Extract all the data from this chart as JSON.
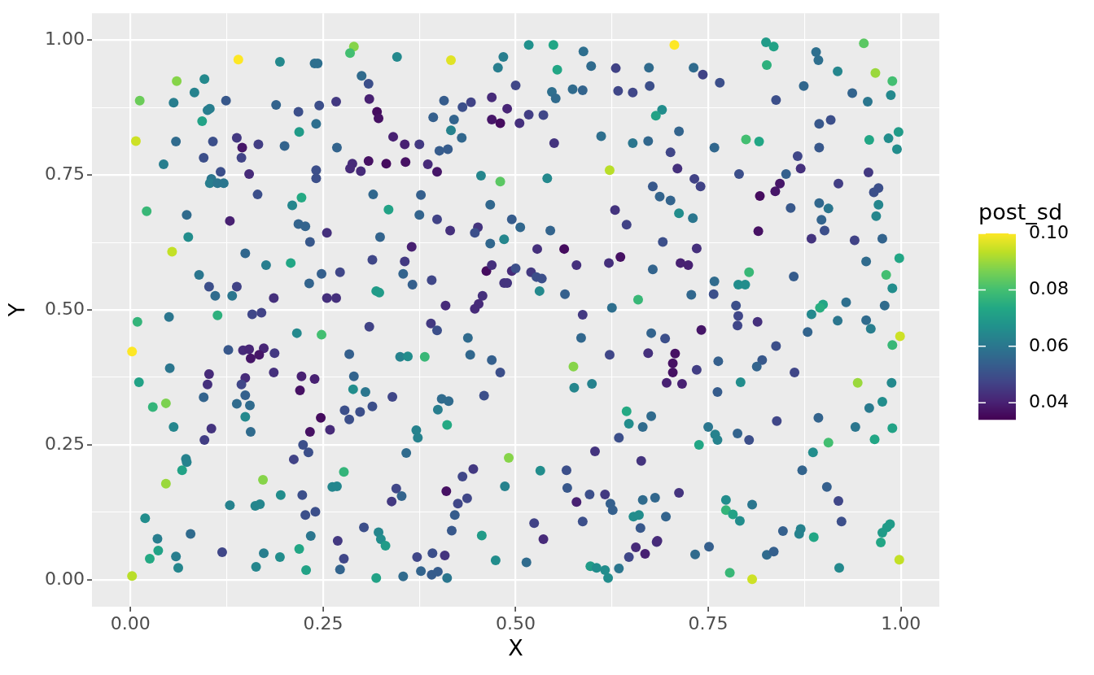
{
  "chart_data": {
    "type": "scatter",
    "xlabel": "X",
    "ylabel": "Y",
    "clabel": "post_sd",
    "marker": "circle",
    "grid": true,
    "xlim": [
      -0.05,
      1.05
    ],
    "ylim": [
      -0.05,
      1.05
    ],
    "clim": [
      0.034,
      0.1
    ],
    "xticks": [
      {
        "value": 0,
        "label": "0.00"
      },
      {
        "value": 0.125,
        "label": null
      },
      {
        "value": 0.25,
        "label": "0.25"
      },
      {
        "value": 0.375,
        "label": null
      },
      {
        "value": 0.5,
        "label": "0.50"
      },
      {
        "value": 0.625,
        "label": null
      },
      {
        "value": 0.75,
        "label": "0.75"
      },
      {
        "value": 0.875,
        "label": null
      },
      {
        "value": 1,
        "label": "1.00"
      }
    ],
    "yticks": [
      {
        "value": 0,
        "label": "0.00"
      },
      {
        "value": 0.125,
        "label": null
      },
      {
        "value": 0.25,
        "label": "0.25"
      },
      {
        "value": 0.375,
        "label": null
      },
      {
        "value": 0.5,
        "label": "0.50"
      },
      {
        "value": 0.625,
        "label": null
      },
      {
        "value": 0.75,
        "label": "0.75"
      },
      {
        "value": 0.875,
        "label": null
      },
      {
        "value": 1,
        "label": "1.00"
      }
    ],
    "cticks": [
      0.04,
      0.06,
      0.08,
      {
        "value": 0.1,
        "label": "0.10"
      }
    ],
    "x": [
      0.14,
      0.29,
      0.285,
      0.416,
      0.706,
      0.952,
      0.194,
      0.239,
      0.243,
      0.346,
      0.517,
      0.549,
      0.484,
      0.477,
      0.554,
      0.588,
      0.598,
      0.63,
      0.673,
      0.5,
      0.469,
      0.489,
      0.407,
      0.431,
      0.442,
      0.547,
      0.552,
      0.574,
      0.587,
      0.633,
      0.652,
      0.674,
      0.825,
      0.835,
      0.826,
      0.731,
      0.743,
      0.765,
      0.89,
      0.893,
      0.918,
      0.967,
      0.989,
      0.874,
      0.937,
      0.957,
      0.987,
      0.838,
      0.06,
      0.096,
      0.083,
      0.012,
      0.056,
      0.124,
      0.189,
      0.245,
      0.267,
      0.3,
      0.309,
      0.31,
      0.32,
      0.322,
      0.103,
      0.1,
      0.093,
      0.218,
      0.241,
      0.219,
      0.007,
      0.059,
      0.107,
      0.138,
      0.145,
      0.144,
      0.166,
      0.2,
      0.268,
      0.095,
      0.043,
      0.117,
      0.154,
      0.105,
      0.103,
      0.113,
      0.121,
      0.241,
      0.241,
      0.288,
      0.285,
      0.299,
      0.309,
      0.315,
      0.165,
      0.021,
      0.073,
      0.075,
      0.129,
      0.21,
      0.222,
      0.218,
      0.227,
      0.233,
      0.255,
      0.054,
      0.149,
      0.176,
      0.208,
      0.089,
      0.102,
      0.11,
      0.132,
      0.138,
      0.186,
      0.232,
      0.248,
      0.272,
      0.255,
      0.267,
      0.314,
      0.319,
      0.323,
      0.341,
      0.356,
      0.375,
      0.332,
      0.357,
      0.386,
      0.398,
      0.393,
      0.42,
      0.416,
      0.43,
      0.401,
      0.412,
      0.469,
      0.48,
      0.505,
      0.517,
      0.536,
      0.55,
      0.611,
      0.652,
      0.672,
      0.69,
      0.682,
      0.622,
      0.455,
      0.48,
      0.541,
      0.678,
      0.687,
      0.377,
      0.335,
      0.375,
      0.398,
      0.415,
      0.451,
      0.447,
      0.467,
      0.495,
      0.506,
      0.545,
      0.629,
      0.644,
      0.678,
      0.324,
      0.365,
      0.356,
      0.354,
      0.366,
      0.391,
      0.467,
      0.485,
      0.528,
      0.563,
      0.579,
      0.621,
      0.636,
      0.462,
      0.469,
      0.495,
      0.5,
      0.52,
      0.527,
      0.534,
      0.485,
      0.489,
      0.531,
      0.564,
      0.659,
      0.625,
      0.409,
      0.457,
      0.452,
      0.447,
      0.587,
      0.712,
      0.701,
      0.71,
      0.758,
      0.799,
      0.816,
      0.866,
      0.87,
      0.851,
      0.894,
      0.909,
      0.894,
      0.959,
      0.984,
      0.997,
      0.995,
      0.732,
      0.74,
      0.79,
      0.843,
      0.837,
      0.817,
      0.857,
      0.919,
      0.958,
      0.971,
      0.965,
      0.971,
      0.968,
      0.894,
      0.906,
      0.897,
      0.901,
      0.884,
      0.94,
      0.976,
      0.701,
      0.712,
      0.73,
      0.691,
      0.735,
      0.714,
      0.724,
      0.815,
      0.955,
      0.998,
      0.981,
      0.989,
      0.861,
      0.803,
      0.758,
      0.789,
      0.798,
      0.728,
      0.757,
      0.786,
      0.929,
      0.979,
      0.899,
      0.895,
      0.884,
      0.158,
      0.17,
      0.009,
      0.05,
      0.113,
      0.002,
      0.051,
      0.011,
      0.029,
      0.046,
      0.056,
      0.095,
      0.102,
      0.1,
      0.105,
      0.096,
      0.127,
      0.146,
      0.154,
      0.173,
      0.156,
      0.167,
      0.187,
      0.149,
      0.144,
      0.186,
      0.149,
      0.138,
      0.155,
      0.149,
      0.156,
      0.216,
      0.248,
      0.31,
      0.284,
      0.222,
      0.239,
      0.22,
      0.29,
      0.289,
      0.305,
      0.278,
      0.284,
      0.298,
      0.314,
      0.247,
      0.233,
      0.259,
      0.224,
      0.231,
      0.212,
      0.072,
      0.073,
      0.067,
      0.046,
      0.172,
      0.277,
      0.262,
      0.268,
      0.195,
      0.223,
      0.129,
      0.162,
      0.168,
      0.227,
      0.24,
      0.019,
      0.078,
      0.035,
      0.036,
      0.025,
      0.059,
      0.062,
      0.002,
      0.119,
      0.173,
      0.163,
      0.194,
      0.219,
      0.228,
      0.234,
      0.269,
      0.277,
      0.272,
      0.303,
      0.319,
      0.39,
      0.398,
      0.438,
      0.441,
      0.469,
      0.48,
      0.35,
      0.36,
      0.382,
      0.585,
      0.622,
      0.676,
      0.672,
      0.575,
      0.576,
      0.599,
      0.34,
      0.404,
      0.413,
      0.399,
      0.411,
      0.459,
      0.371,
      0.373,
      0.358,
      0.491,
      0.532,
      0.566,
      0.567,
      0.603,
      0.663,
      0.644,
      0.647,
      0.665,
      0.676,
      0.634,
      0.345,
      0.352,
      0.339,
      0.41,
      0.431,
      0.445,
      0.486,
      0.425,
      0.437,
      0.421,
      0.417,
      0.579,
      0.596,
      0.616,
      0.623,
      0.626,
      0.665,
      0.681,
      0.653,
      0.66,
      0.662,
      0.587,
      0.524,
      0.536,
      0.456,
      0.474,
      0.514,
      0.372,
      0.392,
      0.408,
      0.377,
      0.391,
      0.399,
      0.411,
      0.354,
      0.322,
      0.325,
      0.331,
      0.656,
      0.668,
      0.647,
      0.683,
      0.597,
      0.605,
      0.616,
      0.62,
      0.634,
      0.789,
      0.788,
      0.814,
      0.741,
      0.694,
      0.918,
      0.955,
      0.961,
      0.999,
      0.989,
      0.879,
      0.838,
      0.707,
      0.704,
      0.704,
      0.735,
      0.763,
      0.82,
      0.813,
      0.862,
      0.696,
      0.716,
      0.762,
      0.792,
      0.944,
      0.988,
      0.976,
      0.959,
      0.893,
      0.839,
      0.941,
      0.989,
      0.966,
      0.906,
      0.886,
      0.872,
      0.75,
      0.759,
      0.762,
      0.788,
      0.803,
      0.738,
      0.904,
      0.919,
      0.923,
      0.712,
      0.695,
      0.684,
      0.773,
      0.807,
      0.773,
      0.782,
      0.791,
      0.751,
      0.733,
      0.778,
      0.807,
      0.847,
      0.87,
      0.868,
      0.887,
      0.826,
      0.835,
      0.92,
      0.986,
      0.982,
      0.976,
      0.974,
      0.998
    ],
    "values": [
      0.964,
      0.988,
      0.976,
      0.963,
      0.991,
      0.994,
      0.96,
      0.957,
      0.957,
      0.969,
      0.991,
      0.991,
      0.969,
      0.949,
      0.945,
      0.979,
      0.952,
      0.948,
      0.949,
      0.916,
      0.894,
      0.873,
      0.888,
      0.876,
      0.885,
      0.904,
      0.892,
      0.909,
      0.907,
      0.906,
      0.903,
      0.915,
      0.996,
      0.988,
      0.954,
      0.949,
      0.936,
      0.921,
      0.978,
      0.963,
      0.942,
      0.939,
      0.924,
      0.915,
      0.902,
      0.886,
      0.898,
      0.889,
      0.924,
      0.928,
      0.903,
      0.888,
      0.884,
      0.888,
      0.88,
      0.879,
      0.886,
      0.934,
      0.919,
      0.891,
      0.867,
      0.855,
      0.873,
      0.87,
      0.85,
      0.867,
      0.845,
      0.83,
      0.813,
      0.812,
      0.812,
      0.819,
      0.801,
      0.782,
      0.807,
      0.804,
      0.801,
      0.782,
      0.77,
      0.756,
      0.752,
      0.743,
      0.735,
      0.735,
      0.735,
      0.759,
      0.744,
      0.771,
      0.762,
      0.757,
      0.776,
      0.714,
      0.714,
      0.683,
      0.676,
      0.635,
      0.665,
      0.694,
      0.708,
      0.659,
      0.655,
      0.626,
      0.643,
      0.608,
      0.605,
      0.583,
      0.587,
      0.565,
      0.543,
      0.526,
      0.526,
      0.543,
      0.522,
      0.549,
      0.567,
      0.57,
      0.522,
      0.522,
      0.593,
      0.535,
      0.532,
      0.821,
      0.807,
      0.807,
      0.771,
      0.774,
      0.77,
      0.756,
      0.857,
      0.853,
      0.833,
      0.819,
      0.795,
      0.798,
      0.853,
      0.846,
      0.846,
      0.862,
      0.861,
      0.809,
      0.822,
      0.809,
      0.813,
      0.871,
      0.86,
      0.759,
      0.749,
      0.738,
      0.744,
      0.729,
      0.71,
      0.713,
      0.686,
      0.676,
      0.668,
      0.647,
      0.653,
      0.643,
      0.695,
      0.668,
      0.653,
      0.647,
      0.685,
      0.658,
      0.575,
      0.635,
      0.617,
      0.59,
      0.567,
      0.547,
      0.555,
      0.623,
      0.631,
      0.613,
      0.613,
      0.583,
      0.587,
      0.598,
      0.572,
      0.583,
      0.572,
      0.577,
      0.57,
      0.561,
      0.558,
      0.55,
      0.55,
      0.535,
      0.529,
      0.519,
      0.504,
      0.508,
      0.526,
      0.511,
      0.502,
      0.491,
      0.831,
      0.792,
      0.762,
      0.801,
      0.816,
      0.812,
      0.785,
      0.762,
      0.752,
      0.845,
      0.852,
      0.801,
      0.815,
      0.818,
      0.83,
      0.798,
      0.743,
      0.729,
      0.752,
      0.734,
      0.72,
      0.711,
      0.689,
      0.734,
      0.755,
      0.726,
      0.718,
      0.695,
      0.674,
      0.698,
      0.688,
      0.667,
      0.647,
      0.632,
      0.629,
      0.632,
      0.703,
      0.679,
      0.67,
      0.626,
      0.614,
      0.587,
      0.583,
      0.646,
      0.59,
      0.596,
      0.565,
      0.54,
      0.562,
      0.57,
      0.553,
      0.547,
      0.547,
      0.528,
      0.529,
      0.508,
      0.514,
      0.508,
      0.51,
      0.504,
      0.492,
      0.492,
      0.495,
      0.478,
      0.487,
      0.49,
      0.423,
      0.392,
      0.366,
      0.32,
      0.327,
      0.283,
      0.338,
      0.381,
      0.362,
      0.28,
      0.259,
      0.426,
      0.425,
      0.427,
      0.429,
      0.41,
      0.417,
      0.42,
      0.374,
      0.362,
      0.384,
      0.342,
      0.326,
      0.323,
      0.302,
      0.274,
      0.457,
      0.454,
      0.469,
      0.418,
      0.377,
      0.372,
      0.351,
      0.377,
      0.353,
      0.348,
      0.314,
      0.297,
      0.311,
      0.321,
      0.3,
      0.274,
      0.278,
      0.25,
      0.236,
      0.223,
      0.224,
      0.218,
      0.203,
      0.178,
      0.185,
      0.2,
      0.172,
      0.173,
      0.157,
      0.157,
      0.138,
      0.137,
      0.14,
      0.12,
      0.126,
      0.114,
      0.085,
      0.076,
      0.054,
      0.039,
      0.043,
      0.022,
      0.007,
      0.051,
      0.049,
      0.024,
      0.042,
      0.057,
      0.018,
      0.081,
      0.072,
      0.039,
      0.019,
      0.097,
      0.003,
      0.475,
      0.462,
      0.448,
      0.417,
      0.407,
      0.384,
      0.413,
      0.414,
      0.413,
      0.448,
      0.417,
      0.457,
      0.42,
      0.395,
      0.356,
      0.363,
      0.339,
      0.335,
      0.331,
      0.315,
      0.287,
      0.341,
      0.277,
      0.263,
      0.235,
      0.226,
      0.202,
      0.203,
      0.17,
      0.238,
      0.22,
      0.312,
      0.289,
      0.283,
      0.303,
      0.263,
      0.169,
      0.155,
      0.145,
      0.164,
      0.191,
      0.205,
      0.173,
      0.141,
      0.151,
      0.12,
      0.091,
      0.144,
      0.158,
      0.158,
      0.141,
      0.129,
      0.148,
      0.152,
      0.117,
      0.12,
      0.096,
      0.108,
      0.105,
      0.075,
      0.082,
      0.036,
      0.032,
      0.042,
      0.049,
      0.045,
      0.016,
      0.009,
      0.015,
      0.003,
      0.006,
      0.088,
      0.075,
      0.063,
      0.06,
      0.048,
      0.042,
      0.07,
      0.025,
      0.022,
      0.018,
      0.003,
      0.021,
      0.489,
      0.471,
      0.478,
      0.463,
      0.447,
      0.48,
      0.481,
      0.465,
      0.451,
      0.435,
      0.459,
      0.433,
      0.419,
      0.401,
      0.384,
      0.389,
      0.405,
      0.407,
      0.395,
      0.384,
      0.365,
      0.363,
      0.348,
      0.366,
      0.365,
      0.365,
      0.33,
      0.318,
      0.3,
      0.294,
      0.283,
      0.281,
      0.26,
      0.254,
      0.236,
      0.203,
      0.283,
      0.269,
      0.259,
      0.271,
      0.259,
      0.25,
      0.172,
      0.146,
      0.108,
      0.161,
      0.117,
      0.072,
      0.148,
      0.139,
      0.129,
      0.121,
      0.109,
      0.061,
      0.047,
      0.013,
      0.001,
      0.09,
      0.094,
      0.085,
      0.079,
      0.046,
      0.052,
      0.022,
      0.103,
      0.097,
      0.087,
      0.069,
      0.037
    ],
    "cvalues": [
      0.1,
      0.088,
      0.08,
      0.097,
      0.1,
      0.083,
      0.065,
      0.058,
      0.058,
      0.065,
      0.067,
      0.073,
      0.062,
      0.062,
      0.073,
      0.058,
      0.057,
      0.047,
      0.057,
      0.048,
      0.042,
      0.041,
      0.053,
      0.05,
      0.047,
      0.058,
      0.057,
      0.057,
      0.055,
      0.048,
      0.048,
      0.05,
      0.07,
      0.072,
      0.076,
      0.057,
      0.047,
      0.05,
      0.058,
      0.058,
      0.064,
      0.09,
      0.08,
      0.056,
      0.055,
      0.06,
      0.065,
      0.05,
      0.088,
      0.065,
      0.063,
      0.085,
      0.062,
      0.052,
      0.055,
      0.05,
      0.045,
      0.057,
      0.05,
      0.04,
      0.036,
      0.037,
      0.062,
      0.062,
      0.072,
      0.05,
      0.058,
      0.07,
      0.095,
      0.057,
      0.05,
      0.045,
      0.038,
      0.047,
      0.046,
      0.055,
      0.055,
      0.05,
      0.062,
      0.05,
      0.042,
      0.06,
      0.062,
      0.06,
      0.06,
      0.05,
      0.05,
      0.042,
      0.042,
      0.042,
      0.037,
      0.056,
      0.05,
      0.078,
      0.057,
      0.066,
      0.04,
      0.064,
      0.074,
      0.055,
      0.055,
      0.052,
      0.043,
      0.094,
      0.056,
      0.062,
      0.073,
      0.06,
      0.05,
      0.057,
      0.06,
      0.047,
      0.043,
      0.055,
      0.054,
      0.048,
      0.043,
      0.043,
      0.048,
      0.07,
      0.07,
      0.04,
      0.04,
      0.045,
      0.036,
      0.037,
      0.042,
      0.038,
      0.054,
      0.055,
      0.063,
      0.056,
      0.053,
      0.053,
      0.038,
      0.036,
      0.043,
      0.046,
      0.048,
      0.044,
      0.058,
      0.06,
      0.056,
      0.066,
      0.072,
      0.093,
      0.064,
      0.083,
      0.065,
      0.052,
      0.055,
      0.054,
      0.072,
      0.055,
      0.047,
      0.043,
      0.044,
      0.05,
      0.056,
      0.053,
      0.056,
      0.055,
      0.044,
      0.047,
      0.055,
      0.055,
      0.04,
      0.045,
      0.055,
      0.054,
      0.048,
      0.056,
      0.064,
      0.043,
      0.036,
      0.043,
      0.043,
      0.037,
      0.036,
      0.043,
      0.042,
      0.05,
      0.045,
      0.05,
      0.05,
      0.044,
      0.044,
      0.065,
      0.054,
      0.078,
      0.058,
      0.042,
      0.043,
      0.042,
      0.042,
      0.045,
      0.055,
      0.048,
      0.043,
      0.056,
      0.08,
      0.073,
      0.048,
      0.043,
      0.054,
      0.052,
      0.05,
      0.052,
      0.073,
      0.066,
      0.07,
      0.066,
      0.047,
      0.047,
      0.05,
      0.038,
      0.038,
      0.036,
      0.052,
      0.046,
      0.045,
      0.05,
      0.05,
      0.064,
      0.064,
      0.056,
      0.06,
      0.055,
      0.05,
      0.044,
      0.047,
      0.055,
      0.055,
      0.066,
      0.06,
      0.05,
      0.043,
      0.04,
      0.04,
      0.037,
      0.057,
      0.073,
      0.08,
      0.066,
      0.053,
      0.078,
      0.057,
      0.066,
      0.066,
      0.056,
      0.05,
      0.05,
      0.058,
      0.057,
      0.073,
      0.075,
      0.065,
      0.048,
      0.047,
      0.077,
      0.06,
      0.076,
      0.1,
      0.06,
      0.072,
      0.077,
      0.087,
      0.064,
      0.055,
      0.042,
      0.043,
      0.044,
      0.046,
      0.052,
      0.042,
      0.041,
      0.041,
      0.038,
      0.038,
      0.045,
      0.042,
      0.048,
      0.043,
      0.054,
      0.057,
      0.057,
      0.065,
      0.057,
      0.065,
      0.08,
      0.047,
      0.054,
      0.04,
      0.04,
      0.037,
      0.055,
      0.066,
      0.06,
      0.05,
      0.05,
      0.05,
      0.05,
      0.036,
      0.037,
      0.042,
      0.05,
      0.05,
      0.047,
      0.063,
      0.063,
      0.072,
      0.09,
      0.088,
      0.077,
      0.064,
      0.064,
      0.066,
      0.05,
      0.063,
      0.064,
      0.064,
      0.05,
      0.05,
      0.066,
      0.057,
      0.062,
      0.072,
      0.074,
      0.062,
      0.064,
      0.093,
      0.048,
      0.062,
      0.064,
      0.066,
      0.073,
      0.072,
      0.06,
      0.045,
      0.048,
      0.055,
      0.05,
      0.072,
      0.045,
      0.05,
      0.057,
      0.056,
      0.054,
      0.05,
      0.063,
      0.066,
      0.078,
      0.056,
      0.048,
      0.055,
      0.043,
      0.088,
      0.064,
      0.063,
      0.048,
      0.057,
      0.057,
      0.062,
      0.074,
      0.05,
      0.063,
      0.063,
      0.057,
      0.088,
      0.066,
      0.05,
      0.052,
      0.044,
      0.044,
      0.074,
      0.066,
      0.057,
      0.057,
      0.05,
      0.048,
      0.055,
      0.045,
      0.037,
      0.048,
      0.045,
      0.063,
      0.048,
      0.048,
      0.053,
      0.052,
      0.04,
      0.05,
      0.045,
      0.054,
      0.054,
      0.057,
      0.056,
      0.066,
      0.066,
      0.052,
      0.05,
      0.047,
      0.042,
      0.07,
      0.066,
      0.057,
      0.048,
      0.05,
      0.044,
      0.055,
      0.053,
      0.053,
      0.06,
      0.057,
      0.064,
      0.066,
      0.07,
      0.042,
      0.04,
      0.048,
      0.043,
      0.07,
      0.066,
      0.066,
      0.066,
      0.06,
      0.048,
      0.048,
      0.043,
      0.038,
      0.05,
      0.06,
      0.057,
      0.062,
      0.095,
      0.078,
      0.055,
      0.05,
      0.037,
      0.037,
      0.037,
      0.046,
      0.054,
      0.052,
      0.055,
      0.048,
      0.04,
      0.04,
      0.053,
      0.066,
      0.09,
      0.065,
      0.066,
      0.061,
      0.055,
      0.048,
      0.06,
      0.072,
      0.073,
      0.08,
      0.066,
      0.055,
      0.06,
      0.063,
      0.063,
      0.055,
      0.05,
      0.073,
      0.054,
      0.048,
      0.05,
      0.044,
      0.055,
      0.042,
      0.066,
      0.06,
      0.077,
      0.072,
      0.066,
      0.054,
      0.057,
      0.078,
      0.095,
      0.054,
      0.063,
      0.063,
      0.073,
      0.057,
      0.054,
      0.065,
      0.07,
      0.07,
      0.07,
      0.073,
      0.094
    ]
  }
}
